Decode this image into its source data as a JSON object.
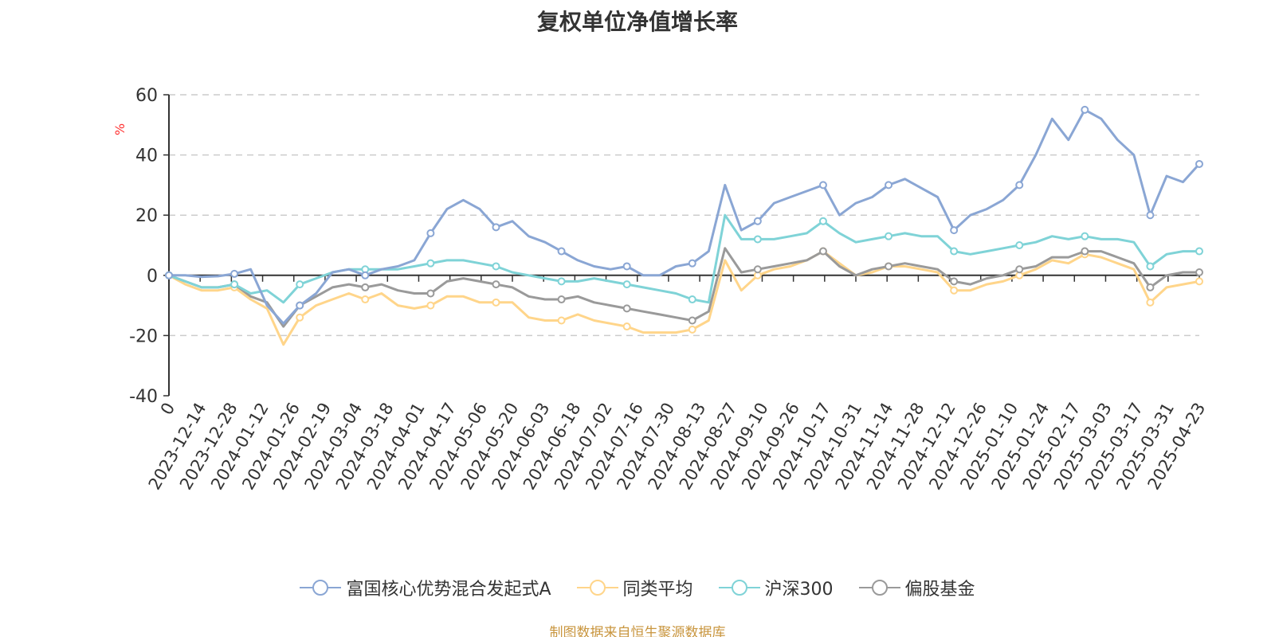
{
  "chart_data": {
    "type": "line",
    "title": "复权单位净值增长率",
    "ylabel": "%",
    "ylim": [
      -40,
      60
    ],
    "yticks": [
      60,
      40,
      20,
      0,
      -20,
      -40
    ],
    "grid": true,
    "legend_position": "bottom-center",
    "x_ticks": [
      "0",
      "2023-12-14",
      "2023-12-28",
      "2024-01-12",
      "2024-01-26",
      "2024-02-19",
      "2024-03-04",
      "2024-03-18",
      "2024-04-01",
      "2024-04-17",
      "2024-05-06",
      "2024-05-20",
      "2024-06-03",
      "2024-06-18",
      "2024-07-02",
      "2024-07-16",
      "2024-07-30",
      "2024-08-13",
      "2024-08-27",
      "2024-09-10",
      "2024-09-26",
      "2024-10-17",
      "2024-10-31",
      "2024-11-14",
      "2024-11-28",
      "2024-12-12",
      "2024-12-26",
      "2025-01-10",
      "2025-01-24",
      "2025-02-17",
      "2025-03-03",
      "2025-03-17",
      "2025-03-31",
      "2025-04-23"
    ],
    "series": [
      {
        "name": "富国核心优势混合发起式A",
        "color": "#8aa6d4",
        "values": [
          0,
          0,
          -0.5,
          -0.3,
          0.5,
          2,
          -10,
          -16,
          -10,
          -6,
          1,
          2,
          0,
          2,
          3,
          5,
          14,
          22,
          25,
          22,
          16,
          18,
          13,
          11,
          8,
          5,
          3,
          2,
          3,
          0,
          0,
          3,
          4,
          8,
          30,
          15,
          18,
          24,
          26,
          28,
          30,
          20,
          24,
          26,
          30,
          32,
          29,
          26,
          15,
          20,
          22,
          25,
          30,
          40,
          52,
          45,
          55,
          52,
          45,
          40,
          20,
          33,
          31,
          37
        ]
      },
      {
        "name": "同类平均",
        "color": "#ffd58a",
        "values": [
          0,
          -3,
          -5,
          -5,
          -4,
          -8,
          -11,
          -23,
          -14,
          -10,
          -8,
          -6,
          -8,
          -6,
          -10,
          -11,
          -10,
          -7,
          -7,
          -9,
          -9,
          -9,
          -14,
          -15,
          -15,
          -13,
          -15,
          -16,
          -17,
          -19,
          -19,
          -19,
          -18,
          -15,
          5,
          -5,
          0,
          2,
          3,
          5,
          8,
          4,
          0,
          1,
          3,
          3,
          2,
          1,
          -5,
          -5,
          -3,
          -2,
          0,
          2,
          5,
          4,
          7,
          6,
          4,
          2,
          -9,
          -4,
          -3,
          -2
        ]
      },
      {
        "name": "沪深300",
        "color": "#7fd3d7",
        "values": [
          0,
          -2,
          -4,
          -4,
          -3,
          -6,
          -5,
          -9,
          -3,
          -1,
          1,
          2,
          2,
          2,
          2,
          3,
          4,
          5,
          5,
          4,
          3,
          1,
          0,
          -1,
          -2,
          -2,
          -1,
          -2,
          -3,
          -4,
          -5,
          -6,
          -8,
          -9,
          20,
          12,
          12,
          12,
          13,
          14,
          18,
          14,
          11,
          12,
          13,
          14,
          13,
          13,
          8,
          7,
          8,
          9,
          10,
          11,
          13,
          12,
          13,
          12,
          12,
          11,
          3,
          7,
          8,
          8
        ]
      },
      {
        "name": "偏股基金",
        "color": "#9a9a9a",
        "values": [
          0,
          -2,
          -4,
          -4,
          -3,
          -7,
          -9,
          -17,
          -10,
          -7,
          -4,
          -3,
          -4,
          -3,
          -5,
          -6,
          -6,
          -2,
          -1,
          -2,
          -3,
          -4,
          -7,
          -8,
          -8,
          -7,
          -9,
          -10,
          -11,
          -12,
          -13,
          -14,
          -15,
          -12,
          9,
          1,
          2,
          3,
          4,
          5,
          8,
          3,
          0,
          2,
          3,
          4,
          3,
          2,
          -2,
          -3,
          -1,
          0,
          2,
          3,
          6,
          6,
          8,
          8,
          6,
          4,
          -4,
          0,
          1,
          1
        ]
      }
    ]
  },
  "source": "制图数据来自恒生聚源数据库"
}
